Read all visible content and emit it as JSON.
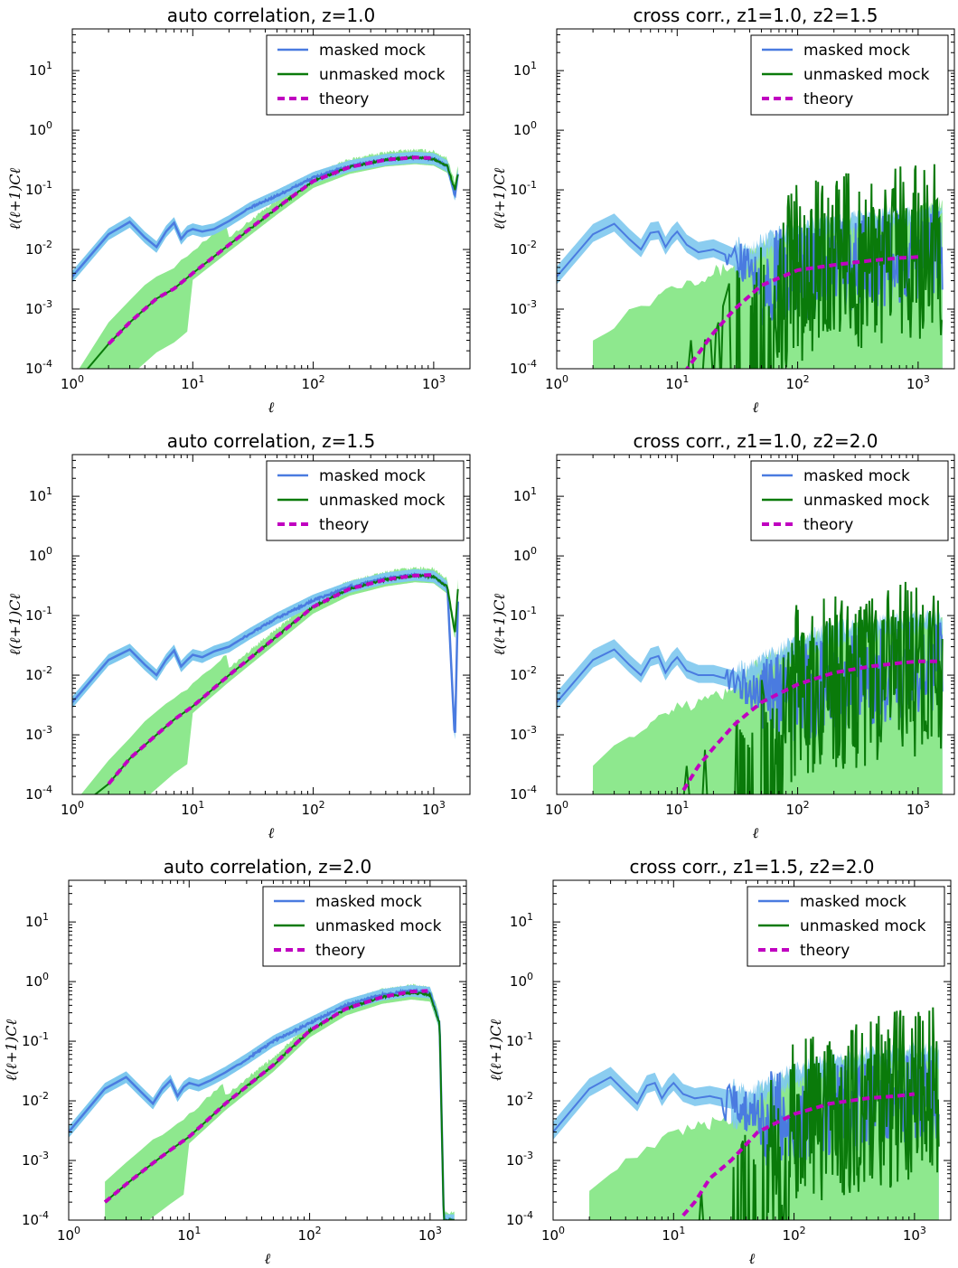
{
  "colors": {
    "masked": "#4a7be0",
    "masked_band": "#7ec8ee",
    "unmasked": "#0a7a0a",
    "unmasked_band": "#8ee88e",
    "theory": "#c000c0"
  },
  "chart_data": [
    {
      "type": "line",
      "title": "auto correlation, z=1.0",
      "xlabel": "ℓ",
      "ylabel": "ℓ(ℓ+1)Cℓ",
      "xscale": "log",
      "yscale": "log",
      "xlim": [
        1,
        2000
      ],
      "ylim": [
        0.0001,
        50
      ],
      "xticks": [
        {
          "base": "10",
          "exp": "0"
        },
        {
          "base": "10",
          "exp": "1"
        },
        {
          "base": "10",
          "exp": "2"
        },
        {
          "base": "10",
          "exp": "3"
        }
      ],
      "yticks": [
        {
          "base": "10",
          "exp": "-4"
        },
        {
          "base": "10",
          "exp": "-3"
        },
        {
          "base": "10",
          "exp": "-2"
        },
        {
          "base": "10",
          "exp": "-1"
        },
        {
          "base": "10",
          "exp": "0"
        },
        {
          "base": "10",
          "exp": "1"
        }
      ],
      "legend": {
        "position": "upper-right",
        "entries": [
          "masked mock",
          "unmasked mock",
          "theory"
        ]
      },
      "series": [
        {
          "name": "masked mock",
          "x": [
            1,
            2,
            3,
            4,
            5,
            6,
            7,
            8,
            9,
            10,
            12,
            15,
            20,
            30,
            50,
            100,
            200,
            400,
            700,
            1000,
            1300,
            1500,
            1600
          ],
          "y": [
            0.0035,
            0.018,
            0.029,
            0.016,
            0.011,
            0.02,
            0.028,
            0.015,
            0.02,
            0.022,
            0.02,
            0.022,
            0.03,
            0.05,
            0.08,
            0.16,
            0.25,
            0.32,
            0.35,
            0.33,
            0.25,
            0.08,
            0.2
          ]
        },
        {
          "name": "unmasked mock",
          "x": [
            1,
            1.5,
            2,
            3,
            5,
            7,
            10,
            20,
            50,
            100,
            200,
            400,
            700,
            1000,
            1300,
            1500,
            1600
          ],
          "y": [
            3e-05,
            0.00012,
            0.00026,
            0.0006,
            0.0015,
            0.0022,
            0.004,
            0.012,
            0.05,
            0.14,
            0.24,
            0.32,
            0.35,
            0.33,
            0.25,
            0.1,
            0.2
          ]
        },
        {
          "name": "theory",
          "x": [
            2,
            3,
            5,
            7,
            10,
            20,
            50,
            100,
            200,
            400,
            700,
            1000
          ],
          "y": [
            0.00026,
            0.0006,
            0.0015,
            0.0022,
            0.004,
            0.012,
            0.05,
            0.14,
            0.24,
            0.32,
            0.35,
            0.34
          ]
        }
      ]
    },
    {
      "type": "line",
      "title": "cross corr., z1=1.0, z2=1.5",
      "xlabel": "ℓ",
      "ylabel": "ℓ(ℓ+1)Cℓ",
      "xscale": "log",
      "yscale": "log",
      "xlim": [
        1,
        2000
      ],
      "ylim": [
        0.0001,
        50
      ],
      "xticks": [
        {
          "base": "10",
          "exp": "0"
        },
        {
          "base": "10",
          "exp": "1"
        },
        {
          "base": "10",
          "exp": "2"
        },
        {
          "base": "10",
          "exp": "3"
        }
      ],
      "yticks": [
        {
          "base": "10",
          "exp": "-4"
        },
        {
          "base": "10",
          "exp": "-3"
        },
        {
          "base": "10",
          "exp": "-2"
        },
        {
          "base": "10",
          "exp": "-1"
        },
        {
          "base": "10",
          "exp": "0"
        },
        {
          "base": "10",
          "exp": "1"
        }
      ],
      "legend": {
        "position": "upper-right",
        "entries": [
          "masked mock",
          "unmasked mock",
          "theory"
        ]
      },
      "series": [
        {
          "name": "masked mock",
          "x": [
            1,
            2,
            3,
            4,
            5,
            6,
            7,
            8,
            9,
            10,
            12,
            15,
            20,
            30,
            50,
            100,
            200,
            500,
            1000,
            1600
          ],
          "y": [
            0.0035,
            0.018,
            0.027,
            0.015,
            0.01,
            0.019,
            0.02,
            0.011,
            0.016,
            0.02,
            0.012,
            0.009,
            0.01,
            0.007,
            0.004,
            0.005,
            0.006,
            0.008,
            0.01,
            0.012
          ]
        },
        {
          "name": "unmasked mock",
          "x": [
            11,
            12,
            13,
            20,
            25,
            30,
            40,
            50,
            60,
            80,
            100,
            200,
            500,
            1000,
            1600
          ],
          "y": [
            0.0001,
            0.0004,
            0.0001,
            0.0001,
            0.0005,
            0.002,
            0.0003,
            0.004,
            0.0002,
            0.005,
            0.008,
            0.012,
            0.015,
            0.018,
            0.02
          ]
        },
        {
          "name": "theory",
          "x": [
            10,
            15,
            20,
            30,
            50,
            100,
            200,
            400,
            700,
            1000
          ],
          "y": [
            6e-05,
            0.00018,
            0.0004,
            0.001,
            0.0025,
            0.0045,
            0.0055,
            0.0065,
            0.0072,
            0.0075
          ]
        }
      ]
    },
    {
      "type": "line",
      "title": "auto correlation, z=1.5",
      "xlabel": "ℓ",
      "ylabel": "ℓ(ℓ+1)Cℓ",
      "xscale": "log",
      "yscale": "log",
      "xlim": [
        1,
        2000
      ],
      "ylim": [
        0.0001,
        50
      ],
      "xticks": [
        {
          "base": "10",
          "exp": "0"
        },
        {
          "base": "10",
          "exp": "1"
        },
        {
          "base": "10",
          "exp": "2"
        },
        {
          "base": "10",
          "exp": "3"
        }
      ],
      "yticks": [
        {
          "base": "10",
          "exp": "-4"
        },
        {
          "base": "10",
          "exp": "-3"
        },
        {
          "base": "10",
          "exp": "-2"
        },
        {
          "base": "10",
          "exp": "-1"
        },
        {
          "base": "10",
          "exp": "0"
        },
        {
          "base": "10",
          "exp": "1"
        }
      ],
      "legend": {
        "position": "upper-right",
        "entries": [
          "masked mock",
          "unmasked mock",
          "theory"
        ]
      },
      "series": [
        {
          "name": "masked mock",
          "x": [
            1,
            2,
            3,
            4,
            5,
            6,
            7,
            8,
            9,
            10,
            12,
            15,
            20,
            30,
            50,
            100,
            200,
            400,
            700,
            1000,
            1300,
            1500,
            1600
          ],
          "y": [
            0.0035,
            0.018,
            0.027,
            0.015,
            0.01,
            0.018,
            0.026,
            0.014,
            0.018,
            0.022,
            0.02,
            0.025,
            0.03,
            0.05,
            0.09,
            0.18,
            0.3,
            0.42,
            0.48,
            0.45,
            0.3,
            0.0008,
            0.3
          ]
        },
        {
          "name": "unmasked mock",
          "x": [
            1,
            1.5,
            2,
            3,
            5,
            7,
            10,
            20,
            50,
            100,
            200,
            400,
            700,
            1000,
            1300,
            1500,
            1600
          ],
          "y": [
            3e-05,
            8e-05,
            0.00015,
            0.0004,
            0.001,
            0.0018,
            0.003,
            0.01,
            0.045,
            0.14,
            0.28,
            0.4,
            0.47,
            0.45,
            0.3,
            0.05,
            0.35
          ]
        },
        {
          "name": "theory",
          "x": [
            2,
            3,
            5,
            7,
            10,
            20,
            50,
            100,
            200,
            400,
            700,
            1000
          ],
          "y": [
            0.00015,
            0.0004,
            0.001,
            0.0018,
            0.003,
            0.01,
            0.045,
            0.14,
            0.28,
            0.4,
            0.47,
            0.48
          ]
        }
      ]
    },
    {
      "type": "line",
      "title": "cross corr., z1=1.0, z2=2.0",
      "xlabel": "ℓ",
      "ylabel": "ℓ(ℓ+1)Cℓ",
      "xscale": "log",
      "yscale": "log",
      "xlim": [
        1,
        2000
      ],
      "ylim": [
        0.0001,
        50
      ],
      "xticks": [
        {
          "base": "10",
          "exp": "0"
        },
        {
          "base": "10",
          "exp": "1"
        },
        {
          "base": "10",
          "exp": "2"
        },
        {
          "base": "10",
          "exp": "3"
        }
      ],
      "yticks": [
        {
          "base": "10",
          "exp": "-4"
        },
        {
          "base": "10",
          "exp": "-3"
        },
        {
          "base": "10",
          "exp": "-2"
        },
        {
          "base": "10",
          "exp": "-1"
        },
        {
          "base": "10",
          "exp": "0"
        },
        {
          "base": "10",
          "exp": "1"
        }
      ],
      "legend": {
        "position": "upper-right",
        "entries": [
          "masked mock",
          "unmasked mock",
          "theory"
        ]
      },
      "series": [
        {
          "name": "masked mock",
          "x": [
            1,
            2,
            3,
            4,
            5,
            6,
            7,
            8,
            9,
            10,
            12,
            15,
            20,
            30,
            50,
            100,
            200,
            500,
            1000,
            1600
          ],
          "y": [
            0.0035,
            0.018,
            0.027,
            0.015,
            0.01,
            0.019,
            0.021,
            0.011,
            0.016,
            0.02,
            0.012,
            0.01,
            0.01,
            0.008,
            0.005,
            0.006,
            0.008,
            0.012,
            0.016,
            0.02
          ]
        },
        {
          "name": "unmasked mock",
          "x": [
            12,
            15,
            20,
            25,
            30,
            40,
            50,
            60,
            80,
            100,
            200,
            500,
            1000,
            1600
          ],
          "y": [
            0.0001,
            0.0003,
            0.0001,
            0.0002,
            0.0006,
            0.0002,
            0.003,
            0.0002,
            0.006,
            0.01,
            0.015,
            0.02,
            0.025,
            0.03
          ]
        },
        {
          "name": "theory",
          "x": [
            10,
            15,
            20,
            30,
            50,
            100,
            200,
            400,
            700,
            1000,
            1500
          ],
          "y": [
            8e-05,
            0.0003,
            0.0006,
            0.0015,
            0.0035,
            0.007,
            0.011,
            0.014,
            0.016,
            0.017,
            0.017
          ]
        }
      ]
    },
    {
      "type": "line",
      "title": "auto correlation, z=2.0",
      "xlabel": "ℓ",
      "ylabel": "ℓ(ℓ+1)Cℓ",
      "xscale": "log",
      "yscale": "log",
      "xlim": [
        1,
        2000
      ],
      "ylim": [
        0.0001,
        50
      ],
      "xticks": [
        {
          "base": "10",
          "exp": "0"
        },
        {
          "base": "10",
          "exp": "1"
        },
        {
          "base": "10",
          "exp": "2"
        },
        {
          "base": "10",
          "exp": "3"
        }
      ],
      "yticks": [
        {
          "base": "10",
          "exp": "-4"
        },
        {
          "base": "10",
          "exp": "-3"
        },
        {
          "base": "10",
          "exp": "-2"
        },
        {
          "base": "10",
          "exp": "-1"
        },
        {
          "base": "10",
          "exp": "0"
        },
        {
          "base": "10",
          "exp": "1"
        }
      ],
      "legend": {
        "position": "upper-right",
        "entries": [
          "masked mock",
          "unmasked mock",
          "theory"
        ]
      },
      "series": [
        {
          "name": "masked mock",
          "x": [
            1,
            2,
            3,
            4,
            5,
            6,
            7,
            8,
            9,
            10,
            12,
            15,
            20,
            30,
            50,
            100,
            200,
            400,
            700,
            1000,
            1200,
            1300,
            1400
          ],
          "y": [
            0.003,
            0.016,
            0.025,
            0.014,
            0.009,
            0.016,
            0.022,
            0.012,
            0.017,
            0.02,
            0.018,
            0.022,
            0.03,
            0.05,
            0.1,
            0.2,
            0.4,
            0.6,
            0.7,
            0.65,
            0.2,
            0.0001,
            0.0001
          ]
        },
        {
          "name": "unmasked mock",
          "x": [
            1.4,
            2,
            3,
            5,
            7,
            10,
            20,
            50,
            100,
            200,
            400,
            700,
            1000,
            1200,
            1300,
            1400
          ],
          "y": [
            0.0001,
            0.0002,
            0.0004,
            0.0009,
            0.0015,
            0.0025,
            0.009,
            0.04,
            0.15,
            0.35,
            0.55,
            0.65,
            0.6,
            0.2,
            0.0001,
            0.0001
          ]
        },
        {
          "name": "theory",
          "x": [
            2,
            3,
            5,
            7,
            10,
            20,
            50,
            100,
            200,
            400,
            700,
            1000
          ],
          "y": [
            0.0002,
            0.0004,
            0.0009,
            0.0015,
            0.0025,
            0.009,
            0.04,
            0.15,
            0.35,
            0.55,
            0.68,
            0.7
          ]
        }
      ]
    },
    {
      "type": "line",
      "title": "cross corr., z1=1.5, z2=2.0",
      "xlabel": "ℓ",
      "ylabel": "ℓ(ℓ+1)Cℓ",
      "xscale": "log",
      "yscale": "log",
      "xlim": [
        1,
        2000
      ],
      "ylim": [
        0.0001,
        50
      ],
      "xticks": [
        {
          "base": "10",
          "exp": "0"
        },
        {
          "base": "10",
          "exp": "1"
        },
        {
          "base": "10",
          "exp": "2"
        },
        {
          "base": "10",
          "exp": "3"
        }
      ],
      "yticks": [
        {
          "base": "10",
          "exp": "-4"
        },
        {
          "base": "10",
          "exp": "-3"
        },
        {
          "base": "10",
          "exp": "-2"
        },
        {
          "base": "10",
          "exp": "-1"
        },
        {
          "base": "10",
          "exp": "0"
        },
        {
          "base": "10",
          "exp": "1"
        }
      ],
      "legend": {
        "position": "upper-right",
        "entries": [
          "masked mock",
          "unmasked mock",
          "theory"
        ]
      },
      "series": [
        {
          "name": "masked mock",
          "x": [
            1,
            2,
            3,
            4,
            5,
            6,
            7,
            8,
            9,
            10,
            12,
            15,
            20,
            30,
            50,
            100,
            200,
            500,
            1000,
            1600
          ],
          "y": [
            0.003,
            0.016,
            0.025,
            0.014,
            0.009,
            0.018,
            0.02,
            0.011,
            0.016,
            0.02,
            0.013,
            0.011,
            0.012,
            0.01,
            0.006,
            0.006,
            0.008,
            0.01,
            0.012,
            0.015
          ]
        },
        {
          "name": "unmasked mock",
          "x": [
            20,
            25,
            30,
            40,
            50,
            60,
            80,
            100,
            200,
            500,
            1000,
            1600
          ],
          "y": [
            0.0001,
            0.0003,
            0.0002,
            0.001,
            0.0002,
            0.004,
            0.0003,
            0.008,
            0.015,
            0.02,
            0.025,
            0.03
          ]
        },
        {
          "name": "theory",
          "x": [
            12,
            15,
            20,
            30,
            50,
            100,
            200,
            400,
            700,
            1000
          ],
          "y": [
            0.00012,
            0.0002,
            0.0005,
            0.001,
            0.003,
            0.006,
            0.009,
            0.011,
            0.012,
            0.013
          ]
        }
      ]
    }
  ]
}
